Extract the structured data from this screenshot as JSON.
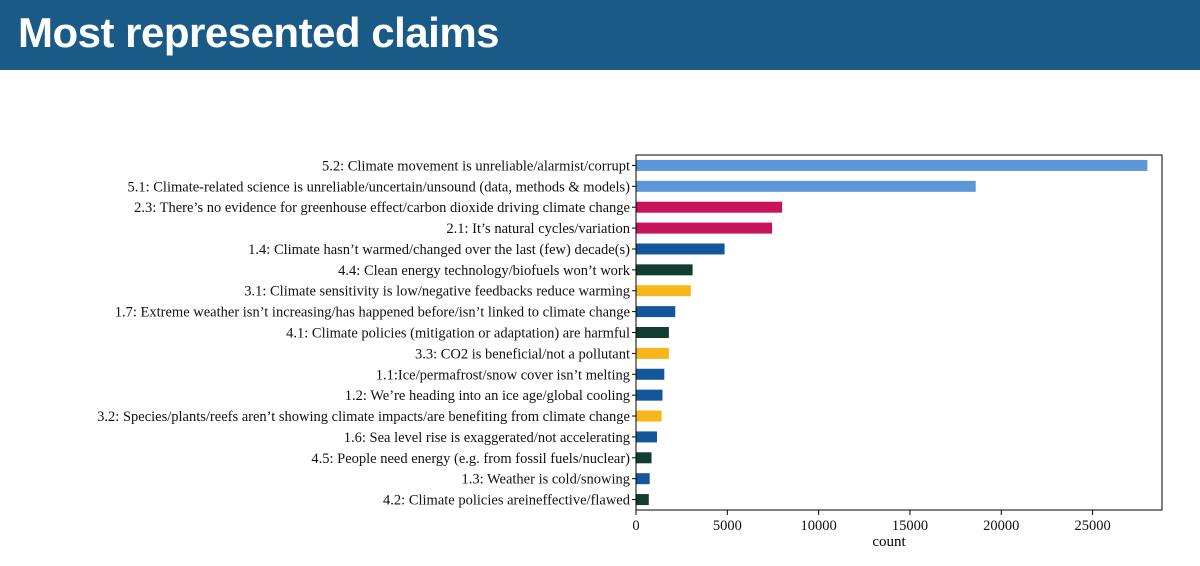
{
  "header": {
    "title": "Most represented claims"
  },
  "colors": {
    "header_bg": "#1a5a86",
    "cat5": "#5b97d6",
    "cat2": "#c7135b",
    "cat1": "#12579b",
    "cat4": "#113d32",
    "cat3": "#f8b61a"
  },
  "chart_data": {
    "type": "bar",
    "orientation": "horizontal",
    "title": "",
    "xlabel": "count",
    "ylabel": "",
    "xlim": [
      0,
      28800
    ],
    "xticks": [
      0,
      5000,
      10000,
      15000,
      20000,
      25000
    ],
    "xtick_labels": [
      "0",
      "5000",
      "10000",
      "15000",
      "20000",
      "25000"
    ],
    "grid": false,
    "categories": [
      "5.2: Climate movement is unreliable/alarmist/corrupt",
      "5.1: Climate-related science is unreliable/uncertain/unsound (data, methods & models)",
      "2.3: There’s no evidence for greenhouse effect/carbon dioxide driving climate change",
      "2.1: It’s natural cycles/variation",
      "1.4: Climate hasn’t warmed/changed over the last (few) decade(s)",
      "4.4: Clean energy technology/biofuels won’t work",
      "3.1: Climate sensitivity is low/negative feedbacks reduce warming",
      "1.7: Extreme weather isn’t increasing/has happened before/isn’t linked to climate change",
      "4.1: Climate policies (mitigation or adaptation) are harmful",
      "3.3: CO2 is beneficial/not a pollutant",
      "1.1:Ice/permafrost/snow cover isn’t melting",
      "1.2: We’re heading into an ice age/global cooling",
      "3.2: Species/plants/reefs aren’t showing climate impacts/are benefiting from climate change",
      "1.6: Sea level rise is exaggerated/not accelerating",
      "4.5: People need energy (e.g. from fossil fuels/nuclear)",
      "1.3: Weather is cold/snowing",
      "4.2: Climate policies areineffective/flawed"
    ],
    "values": [
      28000,
      18600,
      8000,
      7450,
      4850,
      3100,
      3000,
      2150,
      1800,
      1800,
      1550,
      1450,
      1400,
      1150,
      850,
      750,
      700
    ],
    "color_groups": [
      "cat5",
      "cat5",
      "cat2",
      "cat2",
      "cat1",
      "cat4",
      "cat3",
      "cat1",
      "cat4",
      "cat3",
      "cat1",
      "cat1",
      "cat3",
      "cat1",
      "cat4",
      "cat1",
      "cat4"
    ]
  }
}
